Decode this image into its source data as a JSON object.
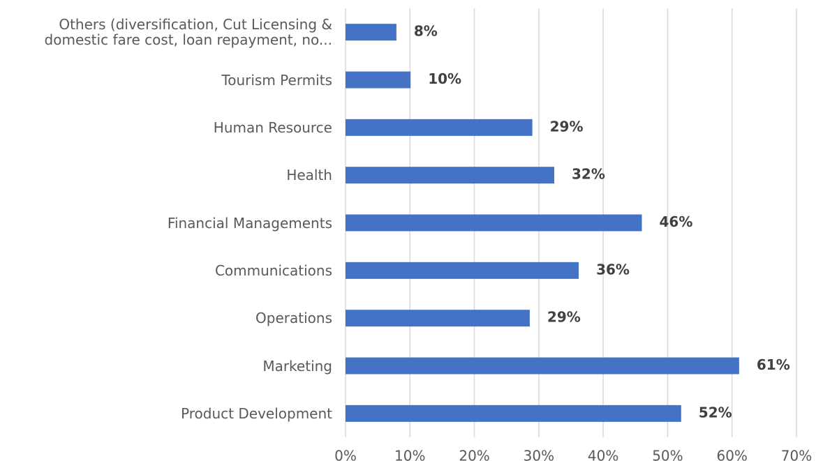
{
  "chart_data": {
    "type": "hbar",
    "categories": [
      "Others (diversification, Cut Licensing & domestic fare cost, loan repayment, no...",
      "Tourism Permits",
      "Human Resource",
      "Health",
      "Financial Managements",
      "Communications",
      "Operations",
      "Marketing",
      "Product Development"
    ],
    "values": [
      7.9,
      10.1,
      29,
      32.4,
      46,
      36.2,
      28.6,
      61.1,
      52.1
    ],
    "value_labels": [
      "8%",
      "10%",
      "29%",
      "32%",
      "46%",
      "36%",
      "29%",
      "61%",
      "52%"
    ],
    "color": "#4472c4",
    "xlim": [
      0,
      70
    ],
    "xticks": [
      {
        "value": 0,
        "label": "0%"
      },
      {
        "value": 10,
        "label": "10%"
      },
      {
        "value": 20,
        "label": "20%"
      },
      {
        "value": 30,
        "label": "30%"
      },
      {
        "value": 40,
        "label": "40%"
      },
      {
        "value": 50,
        "label": "50%"
      },
      {
        "value": 60,
        "label": "60%"
      },
      {
        "value": 70,
        "label": "70%"
      }
    ],
    "grid": true
  }
}
